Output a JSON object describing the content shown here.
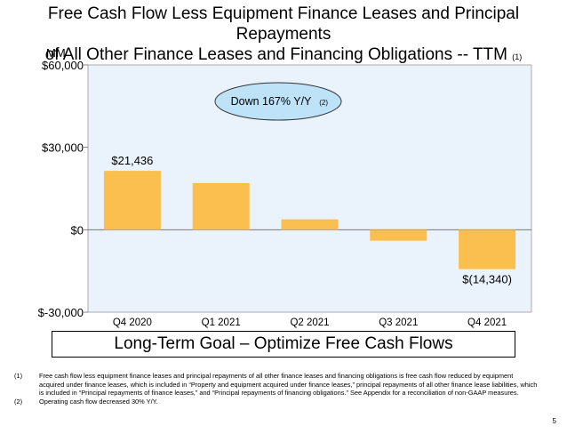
{
  "title": {
    "line1": "Free Cash Flow Less Equipment Finance Leases and Principal Repayments",
    "line2": "of All Other Finance Leases and Financing Obligations -- TTM",
    "footnote_ref": "(1)"
  },
  "chart_data": {
    "type": "bar",
    "unit_label": "MM",
    "categories": [
      "Q4 2020",
      "Q1 2021",
      "Q2 2021",
      "Q3 2021",
      "Q4 2021"
    ],
    "values": [
      21436,
      17000,
      3800,
      -4000,
      -14340
    ],
    "data_labels": [
      "$21,436",
      "",
      "",
      "",
      "$(14,340)"
    ],
    "ylim": [
      -30000,
      60000
    ],
    "y_ticks": [
      60000,
      30000,
      0,
      -30000
    ],
    "y_tick_labels": [
      "$60,000",
      "$30,000",
      "$0",
      "$-30,000"
    ],
    "bar_color": "#FBBF4F",
    "plot_background": "#EAF3FC",
    "annotation": {
      "text": "Down 167% Y/Y",
      "ref": "(2)",
      "fill": "#BEE3F8"
    }
  },
  "goal": "Long-Term Goal – Optimize Free Cash Flows",
  "footnotes": [
    {
      "num": "(1)",
      "text": "Free cash flow less equipment finance leases and principal repayments of all other finance leases and financing obligations is free cash flow reduced by equipment acquired under finance leases, which is included in “Property and equipment acquired under finance leases,” principal repayments of all other finance lease liabilities, which is included in “Principal repayments of finance leases,” and “Principal repayments of financing obligations.” See Appendix for a reconciliation of non-GAAP measures."
    },
    {
      "num": "(2)",
      "text": "Operating cash flow decreased 30% Y/Y."
    }
  ],
  "page_number": "5"
}
